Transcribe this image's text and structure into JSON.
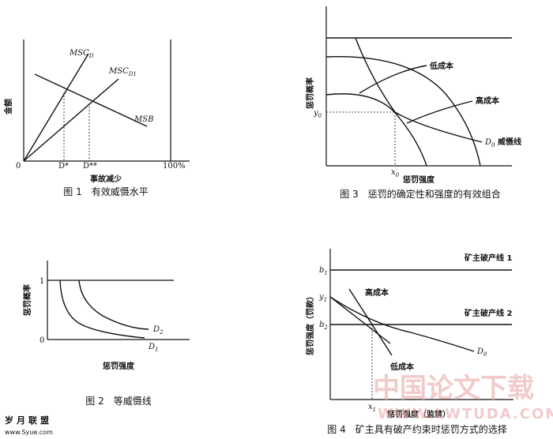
{
  "fig1": {
    "caption": "图 1　有效威慑水平",
    "ylabel": "金额",
    "xlabel": "事故减少",
    "msc_d": "MSC",
    "msc_d_sub": "D",
    "msc_d1": "MSC",
    "msc_d1_sub": "D1",
    "msb": "MSB",
    "origin": "0",
    "d_star": "D*",
    "d_star2": "D**",
    "hundred": "100%"
  },
  "fig2": {
    "caption": "图 2　等威慑线",
    "ylabel": "惩罚概率",
    "xlabel": "惩罚强度",
    "one": "1",
    "zero": "0",
    "d2": "D",
    "d2_sub": "2",
    "d1": "D",
    "d1_sub": "1"
  },
  "fig3": {
    "caption": "图 3　惩罚的确定性和强度的有效组合",
    "ylabel": "惩罚概率",
    "xlabel": "惩罚强度",
    "low_cost": "低成本",
    "high_cost": "高成本",
    "d0_line": "D",
    "d0_sub": "0",
    "d0_text": " 威慑线",
    "y0": "y",
    "y0_sub": "0",
    "x0": "x",
    "x0_sub": "0"
  },
  "fig4": {
    "caption": "图 4　矿主具有破产约束时惩罚方式的选择",
    "ylabel": "惩罚强度（罚款）",
    "xlabel": "惩罚强度（监禁）",
    "bankrupt1": "矿主破产线 1",
    "bankrupt2": "矿主破产线 2",
    "high_cost": "高成本",
    "low_cost": "低成本",
    "b1": "b",
    "b1_sub": "1",
    "y1": "y",
    "y1_sub": "1",
    "b2": "b",
    "b2_sub": "2",
    "x1": "x",
    "x1_sub": "1",
    "d0": "D",
    "d0_sub": "0"
  },
  "watermark": {
    "cn": "中国论文下载",
    "en": "WWW.LWTUDA.COM"
  },
  "logo": {
    "name": "岁月联盟",
    "url": "www.Syue.com"
  }
}
